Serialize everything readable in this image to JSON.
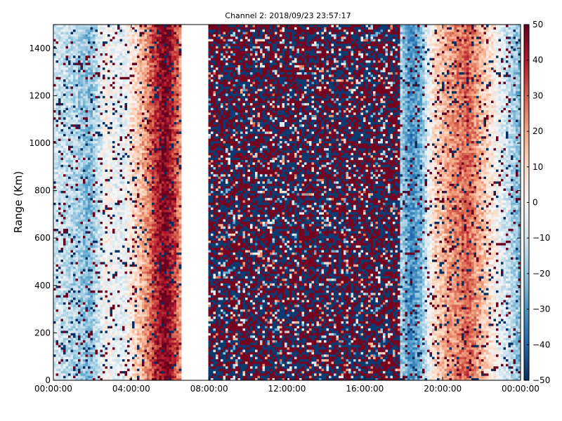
{
  "chart_data": {
    "type": "heatmap",
    "title": "Channel 2: 2018/09/23 23:57:17",
    "xlabel": "",
    "ylabel": "Range (Km)",
    "xlim": [
      "00:00:00",
      "24:00:00"
    ],
    "ylim": [
      0,
      1500
    ],
    "x_ticks": [
      "00:00:00",
      "04:00:00",
      "08:00:00",
      "12:00:00",
      "16:00:00",
      "20:00:00",
      "00:00:00"
    ],
    "x_tick_hours": [
      0,
      4,
      8,
      12,
      16,
      20,
      24
    ],
    "y_ticks": [
      0,
      200,
      400,
      600,
      800,
      1000,
      1200,
      1400
    ],
    "colorbar": {
      "min": -50,
      "max": 50,
      "ticks": [
        50,
        40,
        30,
        20,
        10,
        0,
        -10,
        -20,
        -30,
        -40,
        -50
      ],
      "tick_labels": [
        "50",
        "40",
        "30",
        "20",
        "10",
        "0",
        "−10",
        "−20",
        "−30",
        "−40",
        "−50"
      ],
      "colormap": "RdBu_r",
      "stops": [
        "#053061",
        "#2166ac",
        "#4393c3",
        "#92c5de",
        "#d1e5f0",
        "#f7f7f7",
        "#fddbc7",
        "#f4a582",
        "#d6604d",
        "#b2182b",
        "#67001f"
      ]
    },
    "grid": false,
    "data_gap_hours": [
      6.6,
      8.0
    ],
    "value_profile_by_hour": [
      {
        "hour": 0.0,
        "value": -8
      },
      {
        "hour": 1.0,
        "value": -14
      },
      {
        "hour": 1.9,
        "value": -22
      },
      {
        "hour": 2.7,
        "value": 2
      },
      {
        "hour": 3.5,
        "value": -6
      },
      {
        "hour": 4.2,
        "value": 10
      },
      {
        "hour": 4.8,
        "value": 22
      },
      {
        "hour": 5.3,
        "value": 38
      },
      {
        "hour": 5.8,
        "value": 48
      },
      {
        "hour": 6.3,
        "value": 32
      },
      {
        "hour": 6.6,
        "value": 18
      },
      {
        "hour": 17.8,
        "value": -15
      },
      {
        "hour": 18.4,
        "value": -32
      },
      {
        "hour": 18.9,
        "value": -22
      },
      {
        "hour": 19.5,
        "value": 8
      },
      {
        "hour": 20.3,
        "value": 20
      },
      {
        "hour": 21.3,
        "value": 30
      },
      {
        "hour": 22.2,
        "value": 12
      },
      {
        "hour": 23.2,
        "value": -8
      },
      {
        "hour": 24.0,
        "value": -22
      }
    ],
    "noise_region_hours": [
      8.0,
      17.8
    ]
  }
}
